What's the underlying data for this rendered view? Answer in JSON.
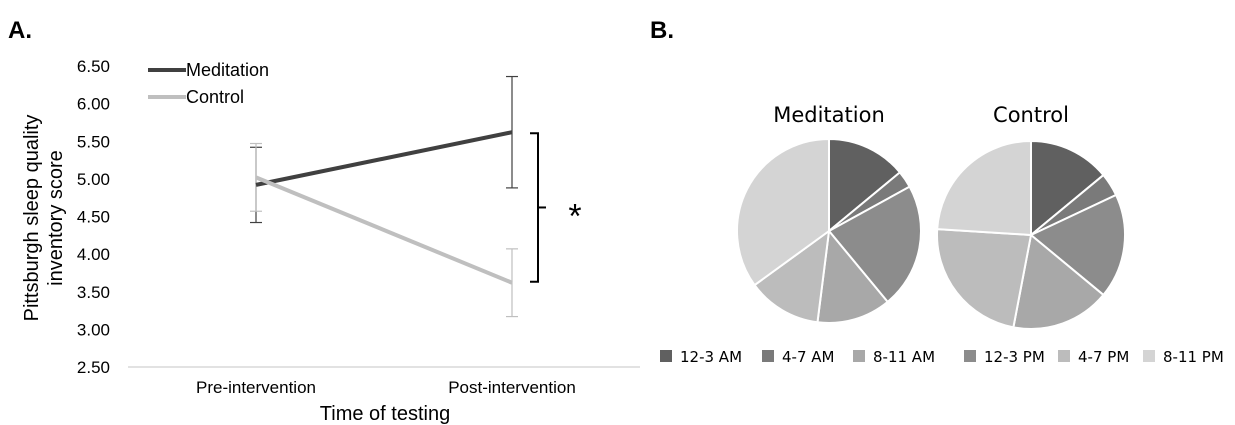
{
  "panels": {
    "a_label": "A.",
    "b_label": "B."
  },
  "chart_data": [
    {
      "type": "line",
      "xlabel": "Time of testing",
      "ylabel": "Pittsburgh sleep quality inventory score",
      "ylabel_lines": [
        "Pittsburgh sleep quality",
        "inventory score"
      ],
      "categories": [
        "Pre-intervention",
        "Post-intervention"
      ],
      "ylim": [
        2.5,
        6.5
      ],
      "yticks": [
        "2.50",
        "3.00",
        "3.50",
        "4.00",
        "4.50",
        "5.00",
        "5.50",
        "6.00",
        "6.50"
      ],
      "legend_position": "top-left",
      "grid": false,
      "series": [
        {
          "name": "Meditation",
          "color": "#404040",
          "values": [
            4.92,
            5.62
          ],
          "error": [
            0.5,
            0.74
          ]
        },
        {
          "name": "Control",
          "color": "#bfbfbf",
          "values": [
            5.02,
            3.62
          ],
          "error": [
            0.45,
            0.45
          ]
        }
      ],
      "annotation": {
        "text": "*",
        "between": "Post-intervention"
      }
    },
    {
      "type": "pie",
      "legend_position": "bottom",
      "labels": [
        "12-3 AM",
        "4-7 AM",
        "8-11 AM",
        "12-3 PM",
        "4-7 PM",
        "8-11 PM"
      ],
      "colors": [
        "#606060",
        "#7a7a7a",
        "#a8a8a8",
        "#8c8c8c",
        "#bcbcbc",
        "#d4d4d4"
      ],
      "pies": [
        {
          "title": "Meditation",
          "values": [
            14,
            3,
            22,
            13,
            13,
            35
          ],
          "slice_colors": [
            "#606060",
            "#7a7a7a",
            "#8c8c8c",
            "#a8a8a8",
            "#bcbcbc",
            "#d4d4d4"
          ]
        },
        {
          "title": "Control",
          "values": [
            14,
            4,
            18,
            17,
            23,
            24
          ],
          "slice_colors": [
            "#606060",
            "#7a7a7a",
            "#8c8c8c",
            "#a8a8a8",
            "#bcbcbc",
            "#d4d4d4"
          ]
        }
      ]
    }
  ]
}
